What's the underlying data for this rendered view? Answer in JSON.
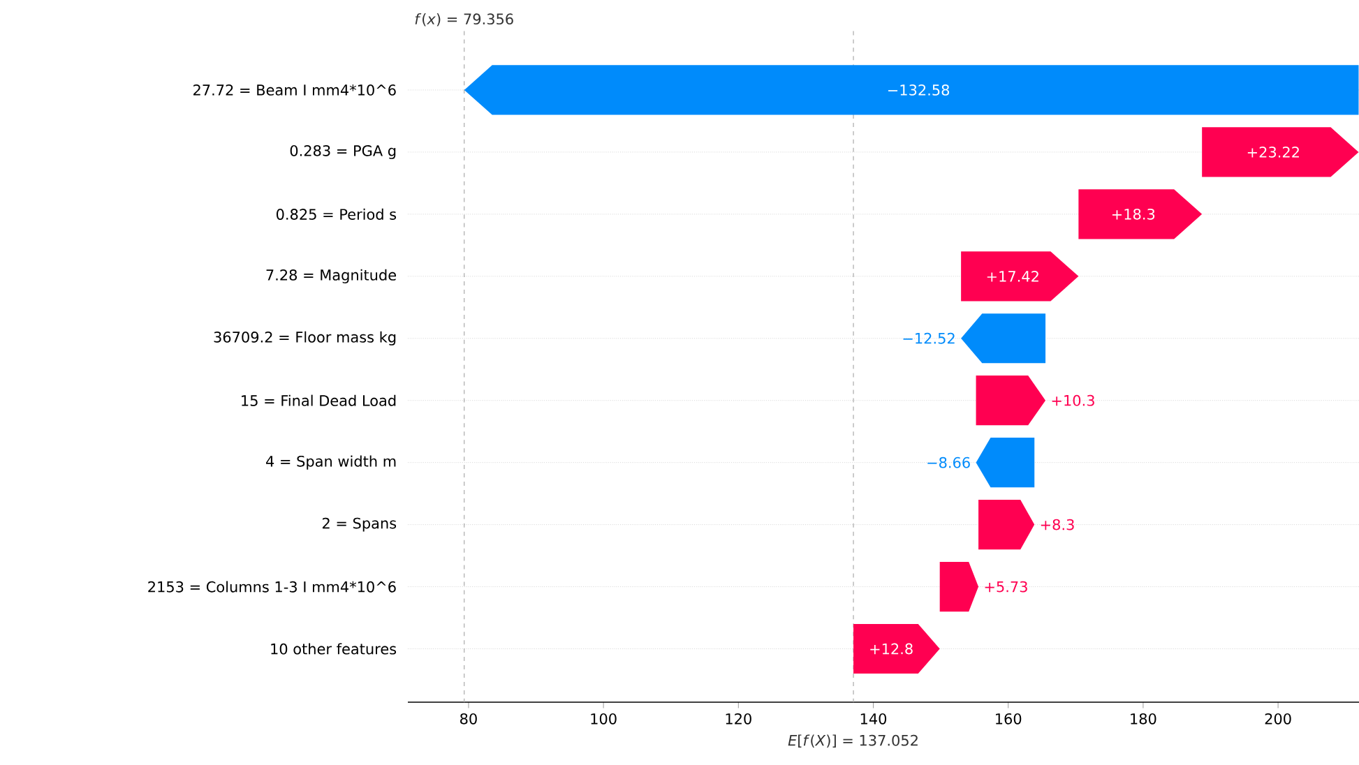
{
  "chart_data": {
    "type": "bar",
    "orientation": "horizontal",
    "categories": [
      "27.72 = Beam I mm4*10^6",
      "0.283 = PGA g",
      "0.825 = Period s",
      "7.28 = Magnitude",
      "36709.2 = Floor mass kg",
      "15 = Final Dead Load",
      "4 = Span width m",
      "2 = Spans",
      "2153 = Columns 1-3 I mm4*10^6",
      "10 other features"
    ],
    "values": [
      -132.58,
      23.22,
      18.3,
      17.42,
      -12.52,
      10.3,
      -8.66,
      8.3,
      5.73,
      12.8
    ],
    "base": [
      211.942,
      188.722,
      170.422,
      153.002,
      165.522,
      155.222,
      163.882,
      155.582,
      149.852,
      137.052
    ],
    "colors": [
      "#008bfb",
      "#ff0051",
      "#ff0051",
      "#ff0051",
      "#008bfb",
      "#ff0051",
      "#008bfb",
      "#ff0051",
      "#ff0051",
      "#ff0051"
    ],
    "value_labels": [
      "−132.58",
      "+23.22",
      "+18.3",
      "+17.42",
      "−12.52",
      "+10.3",
      "−8.66",
      "+8.3",
      "+5.73",
      "+12.8"
    ],
    "xlim": [
      71,
      212
    ],
    "xticks": [
      80,
      100,
      120,
      140,
      160,
      180,
      200
    ],
    "grid": "y",
    "ref_lines": [
      {
        "axis": "x",
        "value": 79.356,
        "label": "*f*(*x*) = 79.356",
        "color": "#aaaaaa",
        "line_style": "dashed"
      },
      {
        "axis": "x",
        "value": 137.052,
        "label": "*E*[*f*(*X*)] = 137.052",
        "color": "#aaaaaa",
        "line_style": "dashed"
      }
    ]
  }
}
